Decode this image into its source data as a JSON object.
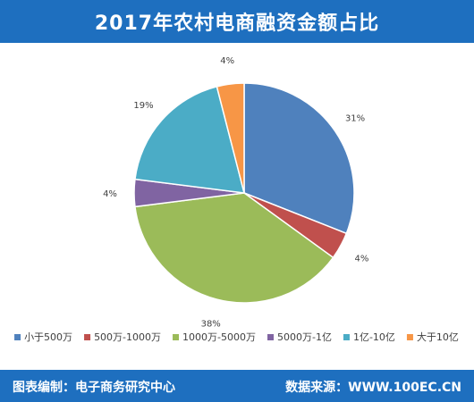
{
  "header": {
    "title": "2017年农村电商融资金额占比"
  },
  "footer": {
    "left": "图表编制：电子商务研究中心",
    "right": "数据来源：WWW.100EC.CN"
  },
  "chart_data": {
    "type": "pie",
    "title": "2017年农村电商融资金额占比",
    "legend_position": "bottom",
    "slices": [
      {
        "label": "小于500万",
        "value": 31,
        "display": "31%",
        "color": "#4f81bd"
      },
      {
        "label": "500万-1000万",
        "value": 4,
        "display": "4%",
        "color": "#c0504d"
      },
      {
        "label": "1000万-5000万",
        "value": 38,
        "display": "38%",
        "color": "#9bbb59"
      },
      {
        "label": "5000万-1亿",
        "value": 4,
        "display": "4%",
        "color": "#8064a2"
      },
      {
        "label": "1亿-10亿",
        "value": 19,
        "display": "19%",
        "color": "#4bacc6"
      },
      {
        "label": "大于10亿",
        "value": 4,
        "display": "4%",
        "color": "#f79646"
      }
    ]
  }
}
